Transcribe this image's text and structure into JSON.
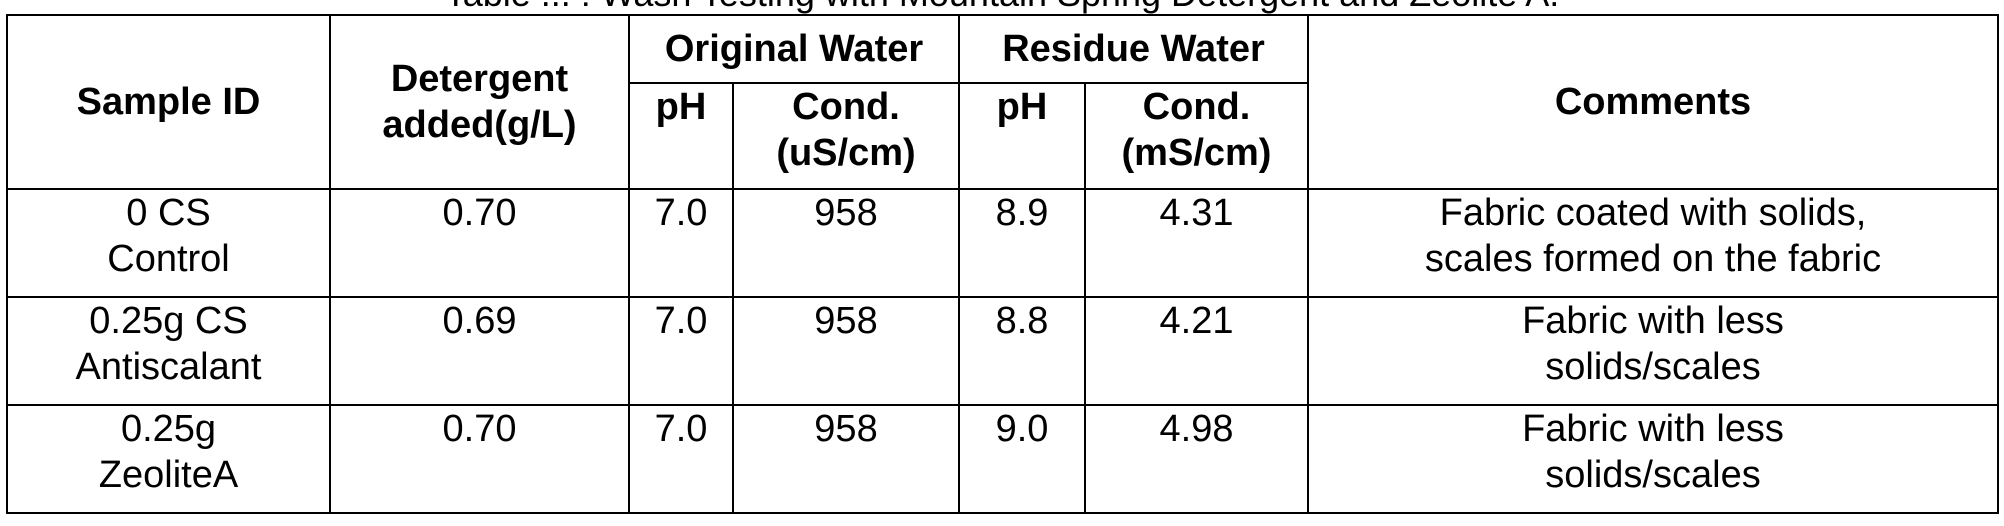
{
  "caption": "Table ... : Wash Testing with Mountain Spring Detergent and Zeolite A.",
  "table": {
    "headers": {
      "sample_id": "Sample ID",
      "detergent": [
        "Detergent",
        "added(g/L)"
      ],
      "original_water": "Original Water",
      "residue_water": "Residue Water",
      "comments": "Comments",
      "orig_ph": "pH",
      "orig_cond": [
        "Cond.",
        "(uS/cm)"
      ],
      "res_ph": "pH",
      "res_cond": [
        "Cond.",
        "(mS/cm)"
      ]
    },
    "rows": [
      {
        "sample_id": [
          "0 CS",
          "Control"
        ],
        "detergent": "0.70",
        "orig_ph": "7.0",
        "orig_cond": "958",
        "res_ph": "8.9",
        "res_cond": "4.31",
        "comments": [
          "Fabric coated with solids,",
          "scales formed on the fabric"
        ]
      },
      {
        "sample_id": [
          "0.25g CS",
          "Antiscalant"
        ],
        "detergent": "0.69",
        "orig_ph": "7.0",
        "orig_cond": "958",
        "res_ph": "8.8",
        "res_cond": "4.21",
        "comments": [
          "Fabric with less",
          "solids/scales"
        ]
      },
      {
        "sample_id": [
          "0.25g",
          "ZeoliteA"
        ],
        "detergent": "0.70",
        "orig_ph": "7.0",
        "orig_cond": "958",
        "res_ph": "9.0",
        "res_cond": "4.98",
        "comments": [
          "Fabric with less",
          "solids/scales"
        ]
      }
    ]
  }
}
